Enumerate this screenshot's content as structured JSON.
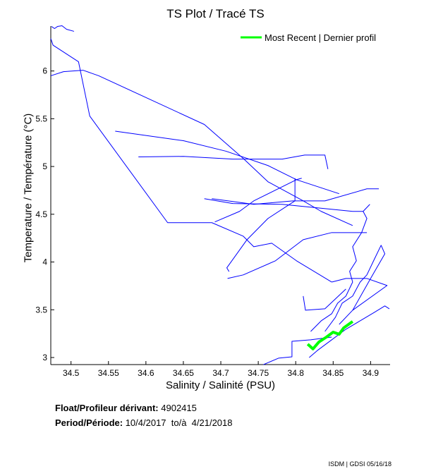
{
  "chart_data": {
    "type": "line",
    "title": "TS Plot / Tracé TS",
    "xlabel": "Salinity / Salinité (PSU)",
    "ylabel": "Temperature / Température (°C)",
    "xlim": [
      34.473,
      34.926
    ],
    "ylim": [
      2.926,
      6.47
    ],
    "xticks": [
      "34.5",
      "34.55",
      "34.6",
      "34.65",
      "34.7",
      "34.75",
      "34.8",
      "34.85",
      "34.9"
    ],
    "yticks": [
      "3",
      "3.5",
      "4",
      "4.5",
      "5",
      "5.5",
      "6"
    ],
    "grid": false,
    "legend": {
      "position": "top-right",
      "entries": [
        {
          "label": "Most Recent | Dernier profil",
          "color": "#00ff00"
        }
      ]
    },
    "series": [
      {
        "name": "Profiles",
        "color": "#0000ff",
        "lines": [
          [
            [
              34.474,
              6.466
            ],
            [
              34.478,
              6.444
            ],
            [
              34.482,
              6.466
            ],
            [
              34.488,
              6.474
            ],
            [
              34.494,
              6.437
            ],
            [
              34.504,
              6.415
            ]
          ],
          [
            [
              34.473,
              6.34
            ],
            [
              34.476,
              6.27
            ],
            [
              34.51,
              6.097
            ],
            [
              34.525,
              5.528
            ],
            [
              34.629,
              4.412
            ],
            [
              34.688,
              4.412
            ],
            [
              34.73,
              4.27
            ],
            [
              34.744,
              4.16
            ],
            [
              34.768,
              4.197
            ],
            [
              34.801,
              4.013
            ],
            [
              34.848,
              3.79
            ]
          ],
          [
            [
              34.473,
              5.95
            ],
            [
              34.49,
              5.993
            ],
            [
              34.516,
              6.008
            ],
            [
              34.537,
              5.95
            ],
            [
              34.678,
              5.44
            ],
            [
              34.73,
              5.084
            ],
            [
              34.763,
              4.84
            ],
            [
              34.81,
              4.64
            ],
            [
              34.834,
              4.53
            ],
            [
              34.876,
              4.382
            ]
          ],
          [
            [
              34.559,
              5.37
            ],
            [
              34.65,
              5.27
            ],
            [
              34.707,
              5.16
            ],
            [
              34.763,
              5.01
            ],
            [
              34.801,
              4.862
            ],
            [
              34.858,
              4.715
            ]
          ],
          [
            [
              34.59,
              5.1
            ],
            [
              34.65,
              5.106
            ],
            [
              34.716,
              5.077
            ],
            [
              34.782,
              5.077
            ],
            [
              34.812,
              5.12
            ],
            [
              34.839,
              5.12
            ],
            [
              34.843,
              4.973
            ]
          ],
          [
            [
              34.678,
              4.663
            ],
            [
              34.716,
              4.612
            ],
            [
              34.782,
              4.604
            ],
            [
              34.876,
              4.53
            ],
            [
              34.89,
              4.53
            ]
          ],
          [
            [
              34.692,
              4.42
            ],
            [
              34.725,
              4.53
            ],
            [
              34.744,
              4.64
            ],
            [
              34.801,
              4.862
            ],
            [
              34.808,
              4.877
            ]
          ],
          [
            [
              34.799,
              4.877
            ],
            [
              34.799,
              4.64
            ],
            [
              34.763,
              4.456
            ],
            [
              34.735,
              4.234
            ],
            [
              34.708,
              3.939
            ],
            [
              34.711,
              3.9
            ]
          ],
          [
            [
              34.709,
              3.828
            ],
            [
              34.73,
              3.865
            ],
            [
              34.773,
              4.013
            ],
            [
              34.81,
              4.234
            ],
            [
              34.848,
              4.308
            ],
            [
              34.895,
              4.308
            ]
          ],
          [
            [
              34.688,
              4.663
            ],
            [
              34.744,
              4.604
            ],
            [
              34.796,
              4.64
            ],
            [
              34.839,
              4.64
            ],
            [
              34.895,
              4.766
            ],
            [
              34.911,
              4.766
            ]
          ],
          [
            [
              34.82,
              3.273
            ],
            [
              34.834,
              3.384
            ],
            [
              34.848,
              3.458
            ],
            [
              34.856,
              3.569
            ],
            [
              34.867,
              3.643
            ],
            [
              34.876,
              3.79
            ],
            [
              34.872,
              3.902
            ],
            [
              34.881,
              4.013
            ],
            [
              34.876,
              4.16
            ],
            [
              34.888,
              4.308
            ],
            [
              34.895,
              4.456
            ],
            [
              34.89,
              4.53
            ],
            [
              34.899,
              4.604
            ]
          ],
          [
            [
              34.839,
              3.273
            ],
            [
              34.853,
              3.421
            ],
            [
              34.862,
              3.569
            ],
            [
              34.876,
              3.643
            ],
            [
              34.886,
              3.79
            ],
            [
              34.895,
              3.865
            ],
            [
              34.904,
              4.013
            ],
            [
              34.914,
              4.175
            ],
            [
              34.919,
              4.086
            ],
            [
              34.9,
              3.828
            ],
            [
              34.876,
              3.495
            ]
          ],
          [
            [
              34.848,
              3.79
            ],
            [
              34.867,
              3.828
            ],
            [
              34.895,
              3.828
            ],
            [
              34.922,
              3.754
            ],
            [
              34.876,
              3.495
            ],
            [
              34.858,
              3.347
            ]
          ],
          [
            [
              34.757,
              2.926
            ],
            [
              34.777,
              2.993
            ],
            [
              34.795,
              3.007
            ],
            [
              34.795,
              3.17
            ],
            [
              34.82,
              3.185
            ],
            [
              34.848,
              3.214
            ]
          ],
          [
            [
              34.818,
              3.0
            ],
            [
              34.829,
              3.074
            ],
            [
              34.848,
              3.185
            ],
            [
              34.867,
              3.296
            ],
            [
              34.886,
              3.384
            ],
            [
              34.905,
              3.473
            ],
            [
              34.919,
              3.54
            ],
            [
              34.925,
              3.51
            ]
          ],
          [
            [
              34.81,
              3.643
            ],
            [
              34.813,
              3.495
            ],
            [
              34.839,
              3.51
            ],
            [
              34.867,
              3.717
            ]
          ]
        ]
      },
      {
        "name": "Most Recent | Dernier profil",
        "color": "#00ff00",
        "lines": [
          [
            [
              34.816,
              3.14
            ],
            [
              34.823,
              3.09
            ],
            [
              34.831,
              3.163
            ],
            [
              34.841,
              3.214
            ],
            [
              34.85,
              3.266
            ],
            [
              34.858,
              3.244
            ],
            [
              34.864,
              3.31
            ],
            [
              34.876,
              3.377
            ]
          ]
        ]
      }
    ]
  },
  "info": {
    "float_label": "Float/Profileur dérivant:",
    "float_value": "4902415",
    "period_label": "Period/Période:",
    "period_value": "10/4/2017  to/à  4/21/2018"
  },
  "footer": "ISDM | GDSI  05/16/18"
}
